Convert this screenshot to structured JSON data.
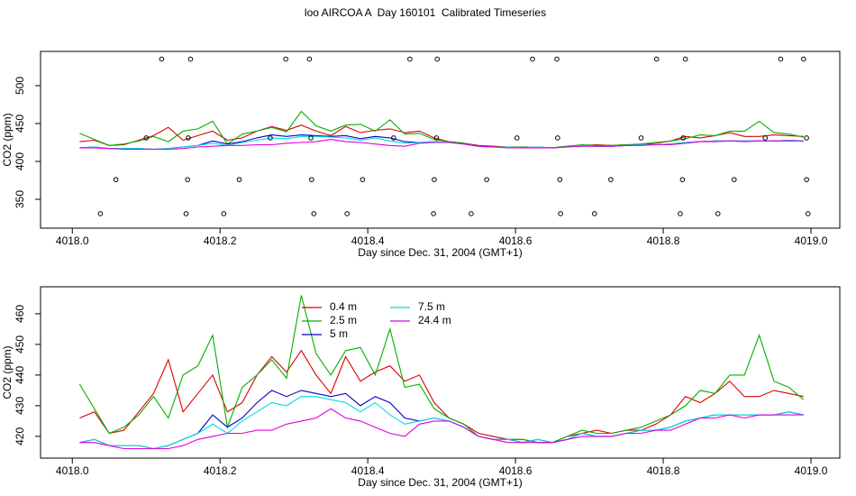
{
  "chart_data": [
    {
      "type": "line",
      "title": "loo AIRCOA A  Day 160101  Calibrated Timeseries",
      "xlabel": "Day since Dec. 31, 2004 (GMT+1)",
      "ylabel": "CO2 (ppm)",
      "xlim": [
        4017.957,
        4019.039
      ],
      "ylim": [
        311.9,
        545.2
      ],
      "xticks": [
        {
          "value": 4018,
          "label": "4018.0"
        },
        4018.2,
        4018.4,
        4018.6,
        4018.8,
        {
          "value": 4019,
          "label": "4019.0"
        }
      ],
      "yticks": [
        350,
        400,
        450,
        500
      ],
      "x": [
        4018.01,
        4018.03,
        4018.05,
        4018.07,
        4018.09,
        4018.11,
        4018.13,
        4018.15,
        4018.17,
        4018.19,
        4018.21,
        4018.23,
        4018.25,
        4018.27,
        4018.29,
        4018.31,
        4018.33,
        4018.35,
        4018.37,
        4018.39,
        4018.41,
        4018.43,
        4018.45,
        4018.47,
        4018.49,
        4018.51,
        4018.53,
        4018.55,
        4018.57,
        4018.59,
        4018.61,
        4018.63,
        4018.65,
        4018.67,
        4018.69,
        4018.71,
        4018.73,
        4018.75,
        4018.77,
        4018.79,
        4018.81,
        4018.83,
        4018.85,
        4018.87,
        4018.89,
        4018.91,
        4018.93,
        4018.95,
        4018.97,
        4018.99
      ],
      "series": [
        {
          "color": "#dd0000",
          "values": [
            426,
            428,
            421,
            422,
            428,
            434,
            445,
            428,
            434,
            440,
            428,
            431,
            440,
            446,
            441,
            448,
            440,
            434,
            446,
            438,
            441,
            443,
            438,
            440,
            431,
            426,
            424,
            421,
            420,
            419,
            419,
            418,
            418,
            420,
            421,
            422,
            421,
            422,
            422,
            424,
            427,
            433,
            431,
            434,
            438,
            433,
            433,
            435,
            434,
            433
          ]
        },
        {
          "color": "#00b000",
          "values": [
            437,
            429,
            421,
            423,
            427,
            433,
            426,
            440,
            443,
            453,
            423,
            436,
            440,
            445,
            439,
            466,
            447,
            440,
            448,
            449,
            440,
            455,
            436,
            437,
            429,
            426,
            424,
            420,
            419,
            419,
            419,
            418,
            418,
            420,
            422,
            421,
            421,
            422,
            423,
            425,
            427,
            430,
            435,
            434,
            440,
            440,
            453,
            438,
            436,
            432
          ]
        },
        {
          "color": "#0000cc",
          "values": [
            418,
            419,
            417,
            417,
            417,
            416,
            417,
            419,
            421,
            427,
            423,
            426,
            431,
            435,
            433,
            435,
            434,
            433,
            434,
            430,
            433,
            431,
            426,
            425,
            426,
            425,
            423,
            420,
            419,
            419,
            418,
            419,
            418,
            419,
            421,
            420,
            420,
            421,
            422,
            422,
            423,
            425,
            426,
            427,
            427,
            427,
            427,
            427,
            428,
            427
          ]
        },
        {
          "color": "#00dddd",
          "values": [
            418,
            419,
            417,
            417,
            417,
            416,
            417,
            419,
            421,
            424,
            421,
            425,
            428,
            431,
            430,
            433,
            433,
            432,
            431,
            428,
            431,
            427,
            424,
            425,
            426,
            425,
            423,
            420,
            419,
            419,
            418,
            419,
            418,
            419,
            421,
            420,
            420,
            421,
            422,
            422,
            423,
            425,
            426,
            427,
            427,
            427,
            427,
            427,
            428,
            427
          ]
        },
        {
          "color": "#dd00dd",
          "values": [
            418,
            418,
            417,
            416,
            416,
            416,
            416,
            417,
            419,
            420,
            421,
            421,
            422,
            422,
            424,
            425,
            426,
            429,
            426,
            425,
            423,
            421,
            420,
            424,
            425,
            425,
            423,
            420,
            419,
            418,
            418,
            418,
            418,
            419,
            420,
            420,
            420,
            421,
            421,
            422,
            422,
            424,
            426,
            426,
            427,
            426,
            427,
            427,
            427,
            427
          ]
        }
      ],
      "points": {
        "x": [
          4018.121,
          4018.16,
          4018.289,
          4018.321,
          4018.457,
          4018.494,
          4018.623,
          4018.656,
          4018.791,
          4018.83,
          4018.959,
          4018.99,
          4018.1,
          4018.157,
          4018.268,
          4018.323,
          4018.435,
          4018.493,
          4018.602,
          4018.657,
          4018.77,
          4018.827,
          4018.938,
          4018.994,
          4018.059,
          4018.156,
          4018.226,
          4018.324,
          4018.393,
          4018.49,
          4018.561,
          4018.66,
          4018.729,
          4018.826,
          4018.896,
          4018.994,
          4018.038,
          4018.154,
          4018.205,
          4018.327,
          4018.372,
          4018.489,
          4018.54,
          4018.661,
          4018.707,
          4018.823,
          4018.874,
          4018.996
        ],
        "y": [
          535,
          535,
          535,
          535,
          535,
          535,
          535,
          535,
          535,
          535,
          535,
          535,
          431,
          431,
          431,
          431,
          431,
          431,
          431,
          431,
          431,
          431,
          431,
          431,
          376,
          376,
          376,
          376,
          376,
          376,
          376,
          376,
          376,
          376,
          376,
          376,
          331,
          331,
          331,
          331,
          331,
          331,
          331,
          331,
          331,
          331,
          331,
          331
        ]
      }
    },
    {
      "type": "line",
      "xlabel": "Day since Dec. 31, 2004 (GMT+1)",
      "ylabel": "CO2 (ppm)",
      "xlim": [
        4017.957,
        4019.039
      ],
      "ylim": [
        412.9,
        468.8
      ],
      "xticks": [
        {
          "value": 4018,
          "label": "4018.0"
        },
        4018.2,
        4018.4,
        4018.6,
        4018.8,
        {
          "value": 4019,
          "label": "4019.0"
        }
      ],
      "yticks": [
        420,
        430,
        440,
        450,
        460
      ],
      "legend": "top",
      "x": [
        4018.01,
        4018.03,
        4018.05,
        4018.07,
        4018.09,
        4018.11,
        4018.13,
        4018.15,
        4018.17,
        4018.19,
        4018.21,
        4018.23,
        4018.25,
        4018.27,
        4018.29,
        4018.31,
        4018.33,
        4018.35,
        4018.37,
        4018.39,
        4018.41,
        4018.43,
        4018.45,
        4018.47,
        4018.49,
        4018.51,
        4018.53,
        4018.55,
        4018.57,
        4018.59,
        4018.61,
        4018.63,
        4018.65,
        4018.67,
        4018.69,
        4018.71,
        4018.73,
        4018.75,
        4018.77,
        4018.79,
        4018.81,
        4018.83,
        4018.85,
        4018.87,
        4018.89,
        4018.91,
        4018.93,
        4018.95,
        4018.97,
        4018.99
      ],
      "series": [
        {
          "name": "0.4 m",
          "color": "#dd0000",
          "values": [
            426,
            428,
            421,
            422,
            428,
            434,
            445,
            428,
            434,
            440,
            428,
            431,
            440,
            446,
            441,
            448,
            440,
            434,
            446,
            438,
            441,
            443,
            438,
            440,
            431,
            426,
            424,
            421,
            420,
            419,
            419,
            418,
            418,
            420,
            421,
            422,
            421,
            422,
            422,
            424,
            427,
            433,
            431,
            434,
            438,
            433,
            433,
            435,
            434,
            433
          ]
        },
        {
          "name": "2.5 m",
          "color": "#00b000",
          "values": [
            437,
            429,
            421,
            423,
            427,
            433,
            426,
            440,
            443,
            453,
            423,
            436,
            440,
            445,
            439,
            466,
            447,
            440,
            448,
            449,
            440,
            455,
            436,
            437,
            429,
            426,
            424,
            420,
            419,
            419,
            419,
            418,
            418,
            420,
            422,
            421,
            421,
            422,
            423,
            425,
            427,
            430,
            435,
            434,
            440,
            440,
            453,
            438,
            436,
            432
          ]
        },
        {
          "name": "5 m",
          "color": "#0000cc",
          "values": [
            418,
            419,
            417,
            417,
            417,
            416,
            417,
            419,
            421,
            427,
            423,
            426,
            431,
            435,
            433,
            435,
            434,
            433,
            434,
            430,
            433,
            431,
            426,
            425,
            426,
            425,
            423,
            420,
            419,
            419,
            418,
            419,
            418,
            419,
            421,
            420,
            420,
            421,
            422,
            422,
            423,
            425,
            426,
            427,
            427,
            427,
            427,
            427,
            428,
            427
          ]
        },
        {
          "name": "7.5 m",
          "color": "#00dddd",
          "values": [
            418,
            419,
            417,
            417,
            417,
            416,
            417,
            419,
            421,
            424,
            421,
            425,
            428,
            431,
            430,
            433,
            433,
            432,
            431,
            428,
            431,
            427,
            424,
            425,
            426,
            425,
            423,
            420,
            419,
            419,
            418,
            419,
            418,
            419,
            421,
            420,
            420,
            421,
            422,
            422,
            423,
            425,
            426,
            427,
            427,
            427,
            427,
            427,
            428,
            427
          ]
        },
        {
          "name": "24.4 m",
          "color": "#dd00dd",
          "values": [
            418,
            418,
            417,
            416,
            416,
            416,
            416,
            417,
            419,
            420,
            421,
            421,
            422,
            422,
            424,
            425,
            426,
            429,
            426,
            425,
            423,
            421,
            420,
            424,
            425,
            425,
            423,
            420,
            419,
            418,
            418,
            418,
            418,
            419,
            420,
            420,
            420,
            421,
            421,
            422,
            422,
            424,
            426,
            426,
            427,
            426,
            427,
            427,
            427,
            427
          ]
        }
      ]
    }
  ]
}
